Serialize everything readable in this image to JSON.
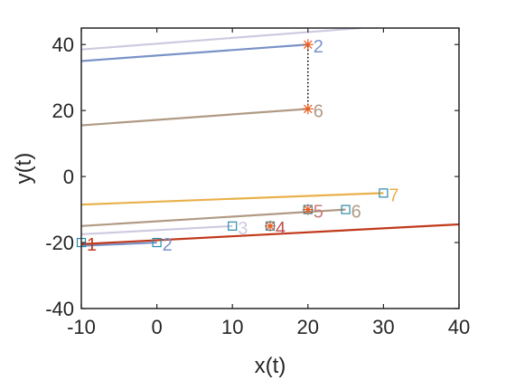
{
  "chart_data": {
    "type": "line",
    "xlabel": "x(t)",
    "ylabel": "y(t)",
    "xlim": [
      -10,
      40
    ],
    "ylim": [
      -40,
      45
    ],
    "xticks": [
      "-10",
      "0",
      "10",
      "20",
      "30",
      "40"
    ],
    "yticks": [
      "-40",
      "-20",
      "0",
      "20",
      "40"
    ],
    "grid": false,
    "series": [
      {
        "color": "#cfc9e0",
        "x": [
          -10,
          27
        ],
        "y": [
          38.5,
          45
        ]
      },
      {
        "color": "#7a92c8",
        "x": [
          -10,
          20
        ],
        "y": [
          35,
          40
        ]
      },
      {
        "color": "#b09a84",
        "x": [
          -10,
          20
        ],
        "y": [
          15.5,
          20.5
        ]
      },
      {
        "color": "#e8b14a",
        "x": [
          -10,
          30
        ],
        "y": [
          -8.5,
          -5
        ]
      },
      {
        "color": "#b09a84",
        "x": [
          -10,
          25
        ],
        "y": [
          -15,
          -10
        ]
      },
      {
        "color": "#cfc9e0",
        "x": [
          -10,
          10
        ],
        "y": [
          -17.5,
          -15
        ]
      },
      {
        "color": "#7a92c8",
        "x": [
          -10,
          0
        ],
        "y": [
          -21,
          -20
        ]
      },
      {
        "color": "#c0391b",
        "x": [
          -10,
          40
        ],
        "y": [
          -20.5,
          -14.5
        ]
      }
    ],
    "square_markers": [
      {
        "x": -10,
        "y": -20,
        "label": "1",
        "label_color": "#c0391b"
      },
      {
        "x": 0,
        "y": -20,
        "label": "2",
        "label_color": "#7a92c8"
      },
      {
        "x": 10,
        "y": -15,
        "label": "3",
        "label_color": "#cfc9e0"
      },
      {
        "x": 15,
        "y": -15,
        "label": "4",
        "label_color": "#c0504d"
      },
      {
        "x": 20,
        "y": -10,
        "label": "5",
        "label_color": "#c97a7a"
      },
      {
        "x": 25,
        "y": -10,
        "label": "6",
        "label_color": "#b09a84"
      },
      {
        "x": 30,
        "y": -5,
        "label": "7",
        "label_color": "#e8b14a"
      }
    ],
    "star_markers": [
      {
        "x": 20,
        "y": 40,
        "label": "2",
        "label_color": "#7a92c8"
      },
      {
        "x": 20,
        "y": 20.5,
        "label": "6",
        "label_color": "#b09a84"
      },
      {
        "x": 15,
        "y": -15,
        "label": "",
        "label_color": "#c0504d"
      },
      {
        "x": 20,
        "y": -10,
        "label": "",
        "label_color": "#c97a7a"
      }
    ],
    "dotted_connector": {
      "x": 20,
      "y1": 20.5,
      "y2": 40
    },
    "marker_colors": {
      "square": "#2a8ab0",
      "star": "#e85a1a"
    }
  }
}
